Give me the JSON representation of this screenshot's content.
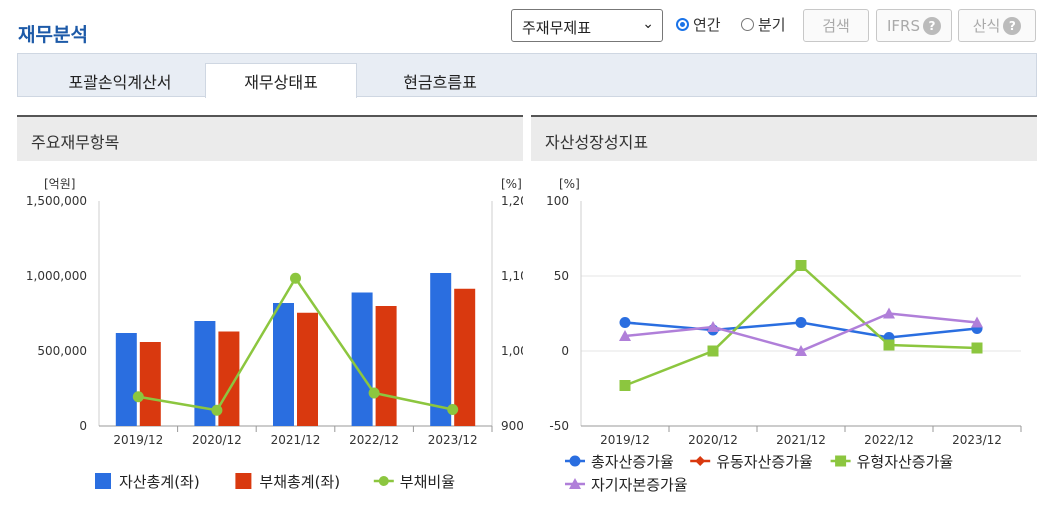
{
  "header": {
    "title": "재무분석",
    "statement_select": "주재무제표",
    "radio_annual": "연간",
    "radio_quarter": "분기",
    "search_button": "검색",
    "ifrs_button": "IFRS",
    "calc_button": "산식",
    "help_glyph": "?"
  },
  "tabs": [
    "포괄손익계산서",
    "재무상태표",
    "현금흐름표"
  ],
  "active_tab": 1,
  "panels": {
    "left_title": "주요재무항목",
    "right_title": "자산성장성지표"
  },
  "chart_data": [
    {
      "type": "bar",
      "categories": [
        "2019/12",
        "2020/12",
        "2021/12",
        "2022/12",
        "2023/12"
      ],
      "y_left_unit": "[억원]",
      "y_right_unit": "[%]",
      "y_left_ticks": [
        "1,500,000",
        "1,000,000",
        "500,000",
        "0"
      ],
      "y_right_ticks": [
        "1,20",
        "1,10",
        "1,00",
        "900"
      ],
      "ylim_left": [
        0,
        1500000
      ],
      "ylim_right": [
        900,
        1200
      ],
      "series": [
        {
          "name": "자산총계(좌)",
          "kind": "bar",
          "axis": "left",
          "color": "#2a6ee0",
          "values": [
            620000,
            700000,
            820000,
            890000,
            1020000
          ]
        },
        {
          "name": "부채총계(좌)",
          "kind": "bar",
          "axis": "left",
          "color": "#d9390f",
          "values": [
            560000,
            630000,
            755000,
            800000,
            915000
          ]
        },
        {
          "name": "부채비율",
          "kind": "line",
          "axis": "right",
          "color": "#8cc63f",
          "values": [
            939,
            921,
            1097,
            944,
            922
          ]
        }
      ],
      "legend": "bottom"
    },
    {
      "type": "line",
      "categories": [
        "2019/12",
        "2020/12",
        "2021/12",
        "2022/12",
        "2023/12"
      ],
      "y_unit": "[%]",
      "y_ticks": [
        "100",
        "50",
        "0",
        "-50"
      ],
      "ylim": [
        -50,
        100
      ],
      "series": [
        {
          "name": "총자산증가율",
          "marker": "circle",
          "color": "#2a6ee0",
          "values": [
            19,
            14,
            19,
            9,
            15
          ]
        },
        {
          "name": "유동자산증가율",
          "marker": "diamond",
          "color": "#d9390f",
          "values": [
            null,
            null,
            null,
            null,
            null
          ]
        },
        {
          "name": "유형자산증가율",
          "marker": "square",
          "color": "#8cc63f",
          "values": [
            -23,
            0,
            57,
            4,
            2
          ]
        },
        {
          "name": "자기자본증가율",
          "marker": "triangle",
          "color": "#b07fd9",
          "values": [
            10,
            16,
            0,
            25,
            19
          ]
        }
      ],
      "legend": "bottom"
    }
  ]
}
